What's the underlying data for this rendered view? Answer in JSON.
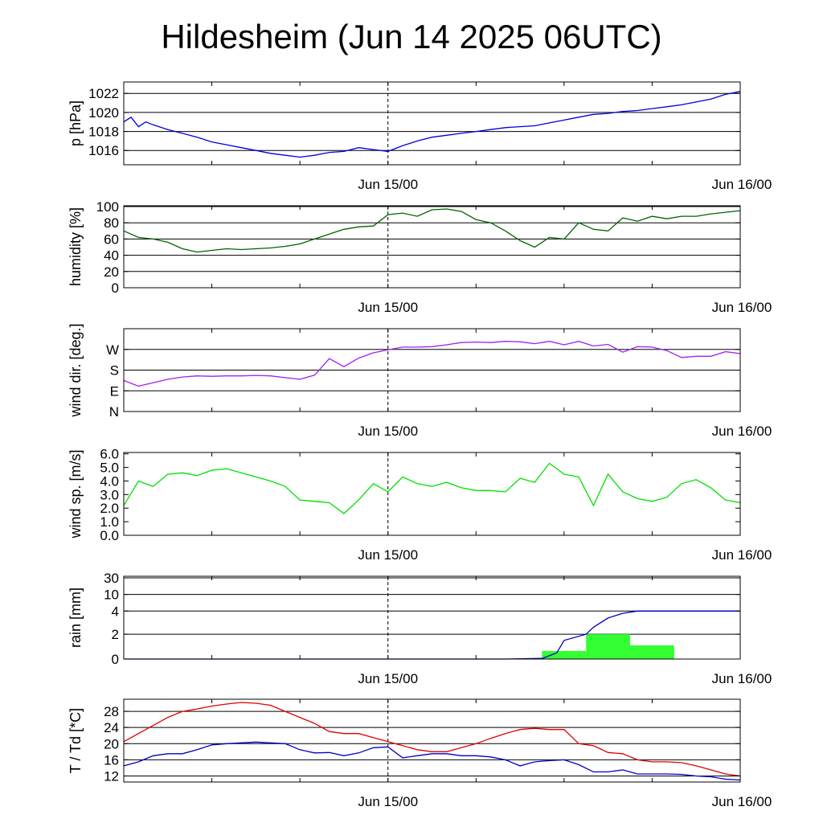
{
  "title": "Hildesheim (Jun 14 2025 06UTC)",
  "chart_data": [
    {
      "type": "line",
      "ylabel": "p [hPa]",
      "yticks": [
        1016,
        1018,
        1020,
        1022
      ],
      "ylim": [
        1014.5,
        1023.2
      ],
      "xlim": [
        0,
        42
      ],
      "xticks": [
        18,
        42
      ],
      "xtick_labels": [
        "Jun 15/00",
        "Jun 16/00"
      ],
      "grid": true,
      "series": [
        {
          "color": "#0000e0",
          "x": [
            0,
            0.5,
            1,
            1.5,
            2,
            3,
            4,
            5,
            6,
            7,
            8,
            9,
            10,
            11,
            12,
            13,
            14,
            15,
            16,
            17,
            18,
            19,
            20,
            21,
            22,
            23,
            24,
            25,
            26,
            27,
            28,
            29,
            30,
            31,
            32,
            33,
            34,
            35,
            36,
            37,
            38,
            39,
            40,
            41,
            42
          ],
          "values": [
            1019,
            1019.5,
            1018.5,
            1019,
            1018.7,
            1018.2,
            1017.8,
            1017.4,
            1016.9,
            1016.6,
            1016.3,
            1016.0,
            1015.7,
            1015.5,
            1015.3,
            1015.5,
            1015.8,
            1015.9,
            1016.3,
            1016.1,
            1015.9,
            1016.5,
            1017.0,
            1017.4,
            1017.6,
            1017.8,
            1018.0,
            1018.2,
            1018.4,
            1018.5,
            1018.6,
            1018.9,
            1019.2,
            1019.5,
            1019.8,
            1019.9,
            1020.1,
            1020.2,
            1020.4,
            1020.6,
            1020.8,
            1021.1,
            1021.4,
            1021.9,
            1022.2
          ]
        }
      ]
    },
    {
      "type": "line",
      "ylabel": "humidity [%]",
      "yticks": [
        0,
        20,
        40,
        60,
        80,
        100
      ],
      "ylim": [
        0,
        101
      ],
      "xlim": [
        0,
        42
      ],
      "xticks": [
        18,
        42
      ],
      "xtick_labels": [
        "Jun 15/00",
        "Jun 16/00"
      ],
      "grid": true,
      "series": [
        {
          "color": "#006400",
          "x": [
            0,
            1,
            2,
            3,
            4,
            5,
            6,
            7,
            8,
            9,
            10,
            11,
            12,
            13,
            14,
            15,
            16,
            17,
            18,
            19,
            20,
            21,
            22,
            23,
            24,
            25,
            26,
            27,
            28,
            29,
            30,
            31,
            32,
            33,
            34,
            35,
            36,
            37,
            38,
            39,
            40,
            41,
            42
          ],
          "values": [
            70,
            62,
            60,
            56,
            48,
            44,
            46,
            48,
            47,
            48,
            49,
            51,
            54,
            60,
            66,
            72,
            75,
            76,
            90,
            92,
            88,
            96,
            97,
            94,
            84,
            80,
            70,
            58,
            50,
            62,
            60,
            80,
            72,
            70,
            86,
            82,
            88,
            85,
            88,
            88,
            91,
            93,
            95
          ]
        }
      ]
    },
    {
      "type": "line",
      "ylabel": "wind dir. [deg.]",
      "yticks": [
        0,
        90,
        180,
        270
      ],
      "ytick_labels": [
        "N",
        "E",
        "S",
        "W"
      ],
      "ylim": [
        0,
        360
      ],
      "xlim": [
        0,
        42
      ],
      "xticks": [
        18,
        42
      ],
      "xtick_labels": [
        "Jun 15/00",
        "Jun 16/00"
      ],
      "grid": true,
      "series": [
        {
          "color": "#a020f0",
          "x": [
            0,
            1,
            2,
            3,
            4,
            5,
            6,
            7,
            8,
            9,
            10,
            11,
            12,
            13,
            14,
            15,
            16,
            17,
            18,
            19,
            20,
            21,
            22,
            23,
            24,
            25,
            26,
            27,
            28,
            29,
            30,
            31,
            32,
            33,
            34,
            35,
            36,
            37,
            38,
            39,
            40,
            41,
            42
          ],
          "values": [
            135,
            110,
            125,
            140,
            150,
            155,
            153,
            155,
            155,
            157,
            155,
            147,
            140,
            158,
            230,
            195,
            232,
            255,
            268,
            280,
            280,
            282,
            290,
            300,
            302,
            300,
            305,
            303,
            295,
            305,
            290,
            305,
            285,
            292,
            258,
            282,
            280,
            265,
            235,
            240,
            240,
            260,
            252
          ]
        }
      ]
    },
    {
      "type": "line",
      "ylabel": "wind sp. [m/s]",
      "yticks": [
        0.0,
        1.0,
        2.0,
        3.0,
        4.0,
        5.0,
        6.0
      ],
      "ylim": [
        0,
        6.1
      ],
      "xlim": [
        0,
        42
      ],
      "xticks": [
        18,
        42
      ],
      "xtick_labels": [
        "Jun 15/00",
        "Jun 16/00"
      ],
      "grid": false,
      "series": [
        {
          "color": "#00e000",
          "x": [
            0,
            1,
            2,
            3,
            4,
            5,
            6,
            7,
            8,
            9,
            10,
            11,
            12,
            13,
            14,
            15,
            16,
            17,
            18,
            19,
            20,
            21,
            22,
            23,
            24,
            25,
            26,
            27,
            28,
            29,
            30,
            31,
            32,
            33,
            34,
            35,
            36,
            37,
            38,
            39,
            40,
            41,
            42
          ],
          "values": [
            2.2,
            4.0,
            3.6,
            4.5,
            4.6,
            4.4,
            4.8,
            4.9,
            4.6,
            4.3,
            4.0,
            3.6,
            2.6,
            2.5,
            2.4,
            1.6,
            2.6,
            3.8,
            3.2,
            4.3,
            3.8,
            3.6,
            3.9,
            3.5,
            3.3,
            3.3,
            3.2,
            4.2,
            3.9,
            5.3,
            4.5,
            4.3,
            2.2,
            4.5,
            3.2,
            2.7,
            2.5,
            2.8,
            3.8,
            4.1,
            3.5,
            2.6,
            2.4
          ]
        }
      ]
    },
    {
      "type": "bar+line",
      "ylabel": "rain [mm]",
      "yticks": [
        0,
        2,
        4,
        10,
        30
      ],
      "ylim": [
        0,
        30
      ],
      "xlim": [
        0,
        42
      ],
      "xticks": [
        18,
        42
      ],
      "xtick_labels": [
        "Jun 15/00",
        "Jun 16/00"
      ],
      "grid": true,
      "bars": {
        "color": "#33ff33",
        "x_start": [
          16,
          28.5,
          31.5,
          34.5
        ],
        "x_end": [
          28.5,
          31.5,
          34.5,
          37.5
        ],
        "values": [
          0.02,
          0.65,
          2.0,
          1.1
        ]
      },
      "series": [
        {
          "color": "#0000c8",
          "x": [
            0,
            26,
            28.5,
            29.5,
            30,
            31.5,
            32,
            33,
            34,
            35,
            36,
            42
          ],
          "values": [
            0,
            0,
            0.05,
            0.5,
            1.5,
            2.0,
            2.6,
            3.4,
            3.8,
            4.0,
            4.0,
            4.0
          ]
        }
      ]
    },
    {
      "type": "line",
      "ylabel": "T / Td [*C]",
      "yticks": [
        12,
        16,
        20,
        24,
        28
      ],
      "ylim": [
        10.5,
        31
      ],
      "xlim": [
        0,
        42
      ],
      "xticks": [
        18,
        42
      ],
      "xtick_labels": [
        "Jun 15/00",
        "Jun 16/00"
      ],
      "grid": true,
      "series": [
        {
          "color": "#e00000",
          "x": [
            0,
            1,
            2,
            3,
            4,
            5,
            6,
            7,
            8,
            9,
            10,
            11,
            12,
            13,
            14,
            15,
            16,
            17,
            18,
            19,
            20,
            21,
            22,
            23,
            24,
            25,
            26,
            27,
            28,
            29,
            30,
            31,
            32,
            33,
            34,
            35,
            36,
            37,
            38,
            39,
            40,
            41,
            42
          ],
          "values": [
            20.5,
            22.5,
            24.5,
            26.5,
            28,
            28.6,
            29.3,
            29.8,
            30.2,
            30,
            29.5,
            28,
            26.5,
            25,
            23,
            22.5,
            22.5,
            21.5,
            20.5,
            19.5,
            18.5,
            18,
            18,
            19,
            20,
            21.3,
            22.5,
            23.5,
            23.8,
            23.5,
            23.5,
            20,
            19.5,
            17.8,
            17.5,
            16,
            15.5,
            15.5,
            15.3,
            14.5,
            13.5,
            12.5,
            12
          ]
        },
        {
          "color": "#0000c8",
          "x": [
            0,
            1,
            2,
            3,
            4,
            5,
            6,
            7,
            8,
            9,
            10,
            11,
            12,
            13,
            14,
            15,
            16,
            17,
            18,
            19,
            20,
            21,
            22,
            23,
            24,
            25,
            26,
            27,
            28,
            29,
            30,
            31,
            32,
            33,
            34,
            35,
            36,
            37,
            38,
            39,
            40,
            41,
            42
          ],
          "values": [
            14.5,
            15.5,
            17,
            17.5,
            17.5,
            18.5,
            19.7,
            20,
            20.2,
            20.4,
            20.2,
            20,
            18.5,
            17.7,
            17.8,
            17,
            17.7,
            19,
            19.2,
            16.5,
            17,
            17.5,
            17.5,
            17,
            17,
            16.7,
            16,
            14.5,
            15.5,
            15.8,
            16,
            14.8,
            13,
            13,
            13.5,
            12.5,
            12.5,
            12.5,
            12.4,
            12,
            11.8,
            11.2,
            11
          ]
        }
      ]
    }
  ]
}
